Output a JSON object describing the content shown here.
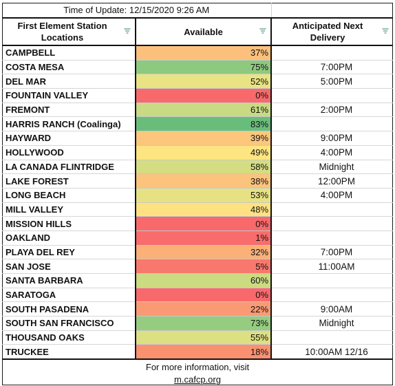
{
  "update": {
    "label": "Time of Update:",
    "value": "12/15/2020 9:26 AM"
  },
  "headers": {
    "location": "First Element Station Locations",
    "available": "Available",
    "delivery": "Anticipated Next Delivery"
  },
  "rows": [
    {
      "name": "CAMPBELL",
      "available": "37%",
      "level": 37,
      "color": "#fbc07c",
      "delivery": ""
    },
    {
      "name": "COSTA MESA",
      "available": "75%",
      "level": 75,
      "color": "#8dc97f",
      "delivery": "7:00PM"
    },
    {
      "name": "DEL MAR",
      "available": "52%",
      "level": 52,
      "color": "#e8e383",
      "delivery": "5:00PM"
    },
    {
      "name": "FOUNTAIN VALLEY",
      "available": "0%",
      "level": 0,
      "color": "#f8696b",
      "delivery": ""
    },
    {
      "name": "FREMONT",
      "available": "61%",
      "level": 61,
      "color": "#c8da82",
      "delivery": "2:00PM"
    },
    {
      "name": "HARRIS RANCH (Coalinga)",
      "available": "83%",
      "level": 83,
      "color": "#69bd7b",
      "delivery": ""
    },
    {
      "name": "HAYWARD",
      "available": "39%",
      "level": 39,
      "color": "#fcc67d",
      "delivery": "9:00PM"
    },
    {
      "name": "HOLLYWOOD",
      "available": "49%",
      "level": 49,
      "color": "#fde582",
      "delivery": "4:00PM"
    },
    {
      "name": "LA CANADA FLINTRIDGE",
      "available": "58%",
      "level": 58,
      "color": "#d4dd82",
      "delivery": "Midnight"
    },
    {
      "name": "LAKE FOREST",
      "available": "38%",
      "level": 38,
      "color": "#fbc37c",
      "delivery": "12:00PM"
    },
    {
      "name": "LONG BEACH",
      "available": "53%",
      "level": 53,
      "color": "#e6e283",
      "delivery": "4:00PM"
    },
    {
      "name": "MILL VALLEY",
      "available": "48%",
      "level": 48,
      "color": "#fee282",
      "delivery": ""
    },
    {
      "name": "MISSION HILLS",
      "available": "0%",
      "level": 0,
      "color": "#f8696b",
      "delivery": ""
    },
    {
      "name": "OAKLAND",
      "available": "1%",
      "level": 1,
      "color": "#f86c6b",
      "delivery": ""
    },
    {
      "name": "PLAYA DEL REY",
      "available": "32%",
      "level": 32,
      "color": "#fbb078",
      "delivery": "7:00PM"
    },
    {
      "name": "SAN JOSE",
      "available": "5%",
      "level": 5,
      "color": "#f8786e",
      "delivery": "11:00AM"
    },
    {
      "name": "SANTA BARBARA",
      "available": "60%",
      "level": 60,
      "color": "#cbdb82",
      "delivery": ""
    },
    {
      "name": "SARATOGA",
      "available": "0%",
      "level": 0,
      "color": "#f8696b",
      "delivery": ""
    },
    {
      "name": "SOUTH PASADENA",
      "available": "22%",
      "level": 22,
      "color": "#fa9a74",
      "delivery": "9:00AM"
    },
    {
      "name": "SOUTH SAN FRANCISCO",
      "available": "73%",
      "level": 73,
      "color": "#96cc7f",
      "delivery": "Midnight"
    },
    {
      "name": "THOUSAND OAKS",
      "available": "55%",
      "level": 55,
      "color": "#dddf83",
      "delivery": ""
    },
    {
      "name": "TRUCKEE",
      "available": "18%",
      "level": 18,
      "color": "#f99171",
      "delivery": "10:00AM 12/16"
    }
  ],
  "footer": {
    "line1": "For more information, visit",
    "link": "m.cafcp.org"
  },
  "icons": {
    "filter": "filter-dropdown-icon"
  }
}
